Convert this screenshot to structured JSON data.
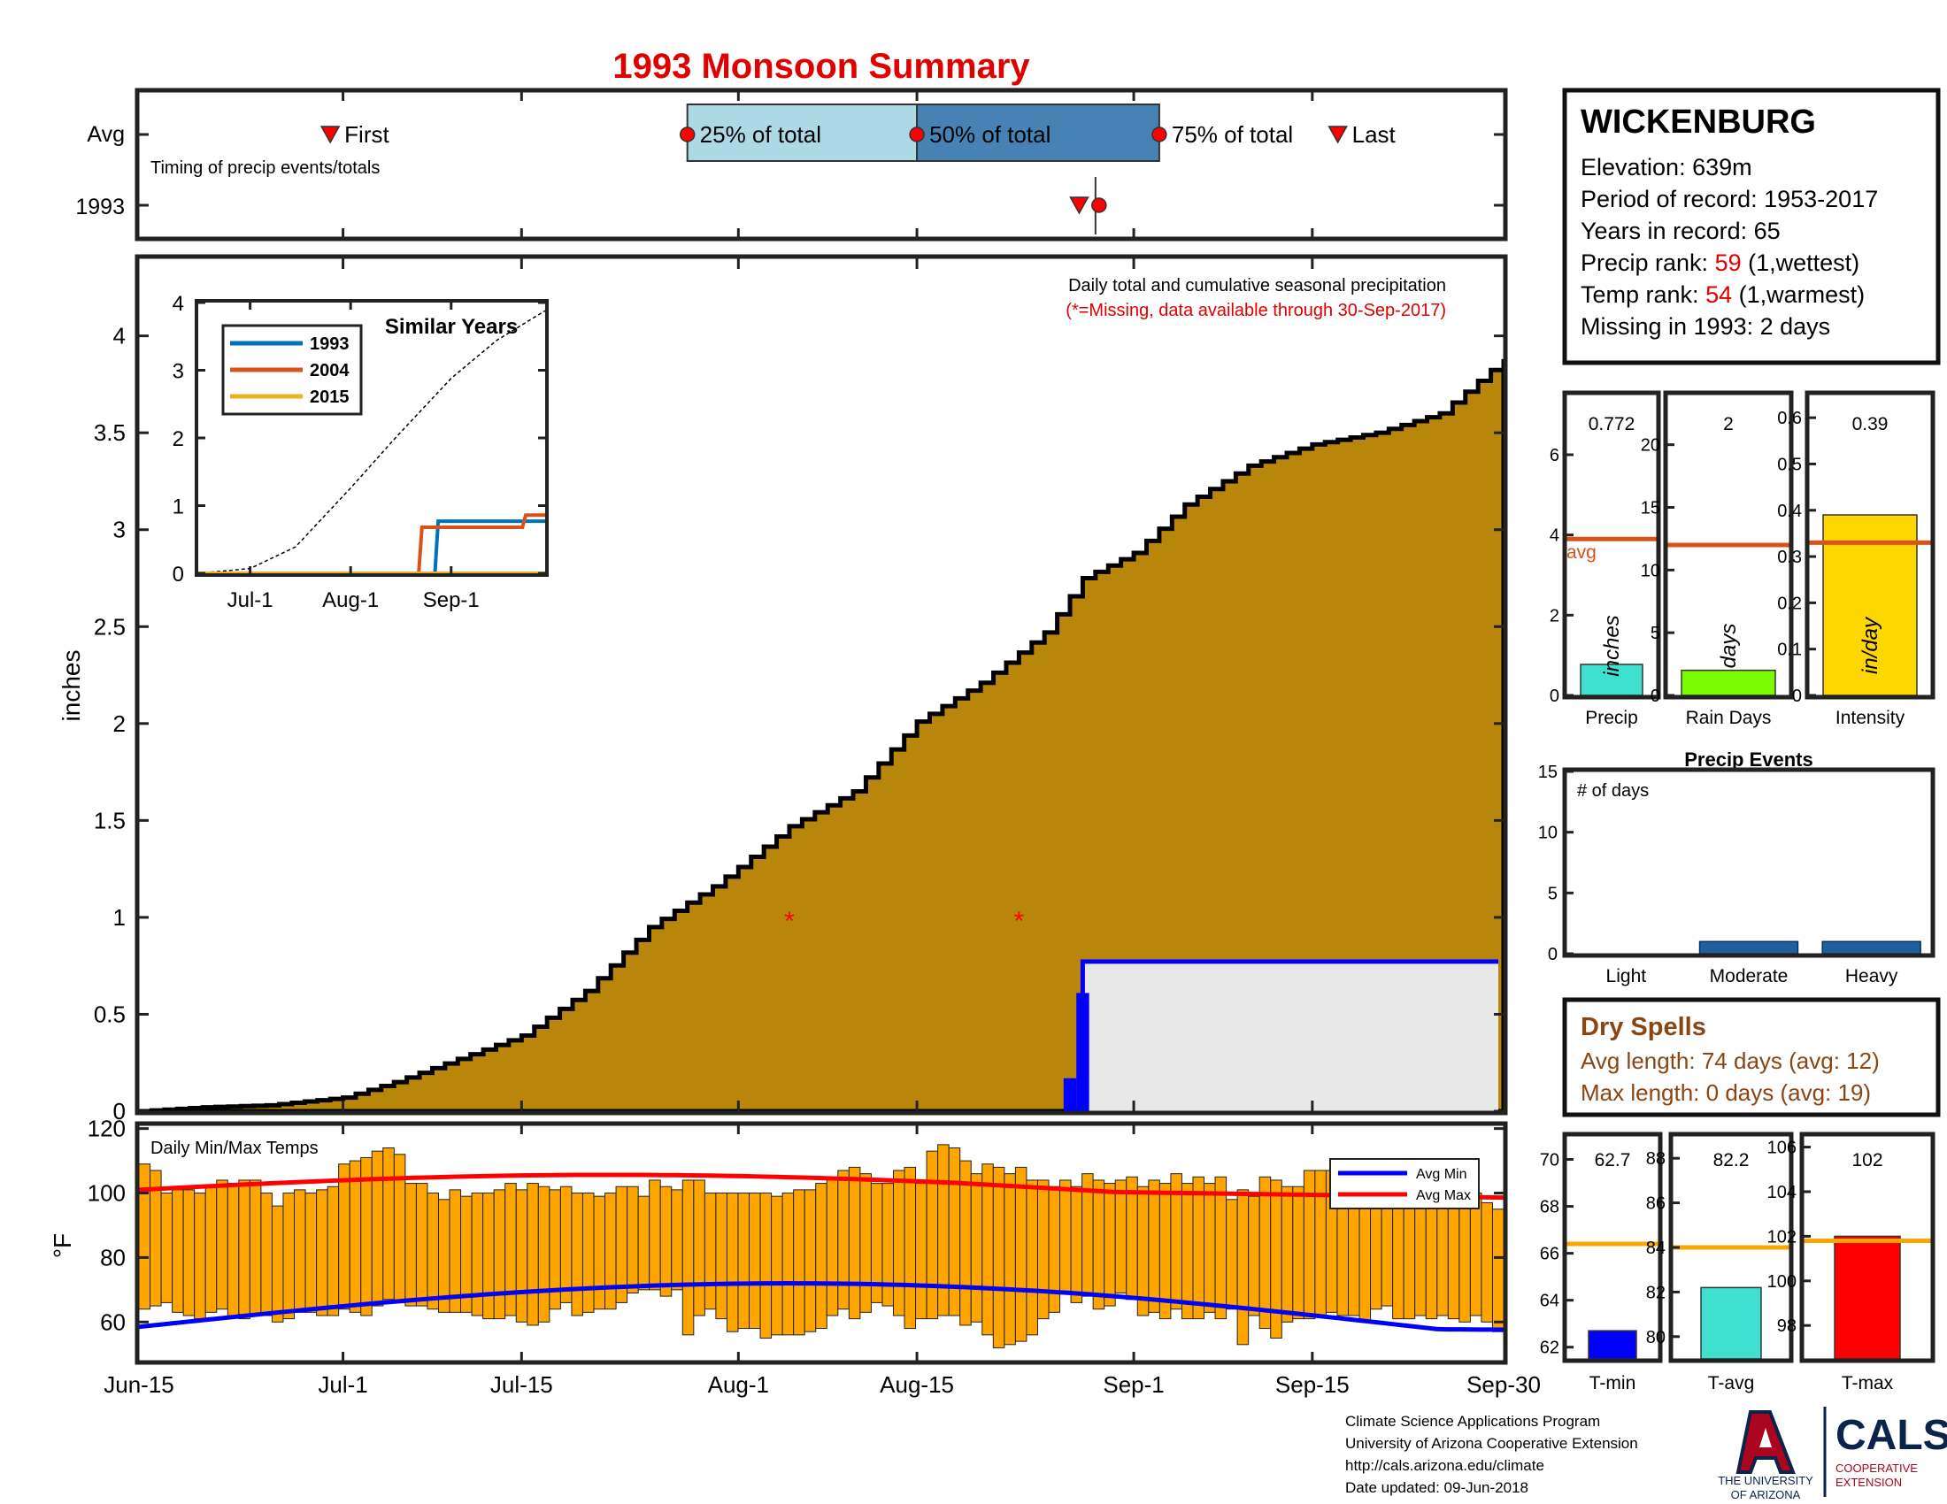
{
  "title": "1993 Monsoon Summary",
  "timing_panel": {
    "row_labels": [
      "Avg",
      "1993"
    ],
    "caption": "Timing of precip events/totals",
    "labels": {
      "first": "First",
      "p25": "25% of total",
      "p50": "50% of total",
      "p75": "75% of total",
      "last": "Last"
    },
    "avg": {
      "first": "2017-06-30",
      "p25": "2017-07-28",
      "p50": "2017-08-15",
      "p75": "2017-09-03",
      "last": "2017-09-17"
    },
    "year": {
      "first": "2017-08-28",
      "p50": "2017-08-29"
    },
    "box_colors": {
      "q1": "#add8e6",
      "q2": "#4682b4"
    },
    "marker_color": "#ff0000"
  },
  "station": {
    "name": "WICKENBURG",
    "elevation": "Elevation: 639m",
    "period": "Period of record: 1953-2017",
    "years": "Years in record: 65",
    "precip_rank_label": "Precip rank: ",
    "precip_rank_value": "59",
    "precip_rank_note": " (1,wettest)",
    "temp_rank_label": "Temp rank: ",
    "temp_rank_value": "54",
    "temp_rank_note": " (1,warmest)",
    "missing": "Missing in 1993: 2 days"
  },
  "main_panel": {
    "ylabel": "inches",
    "annotation": "Daily total and cumulative seasonal precipitation",
    "annotation_missing": "(*=Missing, data available through 30-Sep-2017)",
    "x_ticks": [
      "Jun-15",
      "Jul-1",
      "Jul-15",
      "Aug-1",
      "Aug-15",
      "Sep-1",
      "Sep-15",
      "Sep-30"
    ],
    "y_ticks": [
      "0",
      "0.5",
      "1",
      "1.5",
      "2",
      "2.5",
      "3",
      "3.5",
      "4"
    ],
    "missing_marker": "*",
    "colors": {
      "avg_fill": "#b8860b",
      "year_fill": "#e8e8e8",
      "year_line": "#0000ff",
      "daily_bar": "#0000ff"
    }
  },
  "inset": {
    "title": "Similar Years",
    "x_ticks": [
      "Jul-1",
      "Aug-1",
      "Sep-1"
    ],
    "y_ticks": [
      "0",
      "1",
      "2",
      "3",
      "4"
    ],
    "legend": [
      {
        "name": "1993",
        "color": "#0072bd"
      },
      {
        "name": "2004",
        "color": "#d95319"
      },
      {
        "name": "2015",
        "color": "#edb120"
      }
    ]
  },
  "stat_panels": {
    "precip": {
      "label": "Precip",
      "value": "0.772",
      "unit": "inches",
      "avg_label": "avg",
      "ticks": [
        "0",
        "2",
        "4",
        "6"
      ]
    },
    "rain_days": {
      "label": "Rain Days",
      "value": "2",
      "unit": "days",
      "ticks": [
        "0",
        "5",
        "10",
        "15",
        "20"
      ]
    },
    "intensity": {
      "label": "Intensity",
      "value": "0.39",
      "unit": "in/day",
      "ticks": [
        "0",
        "0.1",
        "0.2",
        "0.3",
        "0.4",
        "0.5",
        "0.6"
      ]
    }
  },
  "precip_events": {
    "title": "Precip Events",
    "ylabel_in": "# of days",
    "categories": [
      "Light",
      "Moderate",
      "Heavy"
    ],
    "y_ticks": [
      "0",
      "5",
      "10",
      "15"
    ]
  },
  "dry_spells": {
    "title": "Dry Spells",
    "avg_length": "Avg length: 74 days (avg: 12)",
    "max_length": "Max length: 0 days (avg: 19)"
  },
  "temp_panel": {
    "caption": "Daily Min/Max Temps",
    "ylabel": "°F",
    "y_ticks": [
      "60",
      "80",
      "100",
      "120"
    ],
    "legend": [
      "Avg Min",
      "Avg Max"
    ],
    "colors": {
      "bar": "#ffa500",
      "avg_min": "#0000ff",
      "avg_max": "#ff0000"
    }
  },
  "temp_stats": {
    "tmin": {
      "label": "T-min",
      "value": "62.7",
      "ticks": [
        "62",
        "64",
        "66",
        "68",
        "70"
      ]
    },
    "tavg": {
      "label": "T-avg",
      "value": "82.2",
      "ticks": [
        "80",
        "82",
        "84",
        "86",
        "88"
      ]
    },
    "tmax": {
      "label": "T-max",
      "value": "102",
      "ticks": [
        "98",
        "100",
        "102",
        "104",
        "106"
      ]
    }
  },
  "footer": {
    "line1": "Climate Science Applications Program",
    "line2": "University of Arizona Cooperative Extension",
    "line3": "http://cals.arizona.edu/climate",
    "line4": " Date updated: 09-Jun-2018",
    "logo_univ1": "THE UNIVERSITY",
    "logo_univ2": "OF ARIZONA",
    "logo_cals": "CALS",
    "logo_coop1": "COOPERATIVE",
    "logo_coop2": "EXTENSION"
  },
  "chart_data": [
    {
      "type": "area",
      "name": "cumulative_precip",
      "xlabel": "",
      "ylabel": "inches",
      "xlim": [
        "2017-06-15",
        "2017-09-30"
      ],
      "ylim": [
        0,
        4.4
      ],
      "series": [
        {
          "name": "avg",
          "x": [
            "2017-06-15",
            "2017-06-20",
            "2017-06-25",
            "2017-07-01",
            "2017-07-05",
            "2017-07-10",
            "2017-07-15",
            "2017-07-20",
            "2017-07-25",
            "2017-07-30",
            "2017-08-01",
            "2017-08-05",
            "2017-08-10",
            "2017-08-15",
            "2017-08-20",
            "2017-08-25",
            "2017-08-28",
            "2017-09-01",
            "2017-09-05",
            "2017-09-10",
            "2017-09-15",
            "2017-09-20",
            "2017-09-25",
            "2017-09-30"
          ],
          "values": [
            0,
            0.02,
            0.03,
            0.07,
            0.15,
            0.27,
            0.39,
            0.62,
            0.95,
            1.16,
            1.26,
            1.47,
            1.65,
            2.01,
            2.21,
            2.47,
            2.75,
            2.88,
            3.13,
            3.33,
            3.44,
            3.5,
            3.6,
            3.88
          ]
        },
        {
          "name": "1993",
          "x": [
            "2017-06-15",
            "2017-08-27",
            "2017-08-28",
            "2017-09-30"
          ],
          "values": [
            0,
            0,
            0.772,
            0.772
          ]
        }
      ],
      "daily_bars": [
        {
          "x": "2017-08-27",
          "value": 0.17
        },
        {
          "x": "2017-08-28",
          "value": 0.61
        }
      ],
      "missing_days": [
        {
          "x": "2017-08-05",
          "y": 1.0
        },
        {
          "x": "2017-08-23",
          "y": 1.0
        }
      ]
    },
    {
      "type": "line",
      "name": "similar_years",
      "title": "Similar Years",
      "xlim": [
        "2017-06-15",
        "2017-09-30"
      ],
      "ylim": [
        0,
        4
      ],
      "series": [
        {
          "name": "avg",
          "x": [
            "2017-06-15",
            "2017-07-01",
            "2017-07-15",
            "2017-08-01",
            "2017-08-15",
            "2017-09-01",
            "2017-09-15",
            "2017-09-30"
          ],
          "values": [
            0,
            0.07,
            0.39,
            1.26,
            2.01,
            2.88,
            3.44,
            3.88
          ]
        },
        {
          "name": "1993",
          "x": [
            "2017-06-15",
            "2017-08-27",
            "2017-08-28",
            "2017-09-30"
          ],
          "values": [
            0,
            0,
            0.77,
            0.77
          ]
        },
        {
          "name": "2004",
          "x": [
            "2017-06-15",
            "2017-08-22",
            "2017-08-23",
            "2017-09-23",
            "2017-09-24",
            "2017-09-30"
          ],
          "values": [
            0,
            0,
            0.68,
            0.68,
            0.86,
            0.86
          ]
        },
        {
          "name": "2015",
          "x": [
            "2017-06-15",
            "2017-09-30"
          ],
          "values": [
            0,
            0
          ]
        }
      ]
    },
    {
      "type": "bar",
      "name": "season_stats",
      "categories": [
        "Precip",
        "Rain Days",
        "Intensity"
      ],
      "values": [
        0.772,
        2,
        0.39
      ],
      "averages": [
        3.9,
        12,
        0.33
      ],
      "ylims": [
        [
          0,
          7.5
        ],
        [
          0,
          24
        ],
        [
          0,
          0.65
        ]
      ],
      "colors": [
        "#40e0d0",
        "#7cfc00",
        "#ffd700"
      ]
    },
    {
      "type": "bar",
      "name": "precip_events",
      "categories": [
        "Light",
        "Moderate",
        "Heavy"
      ],
      "values": [
        0,
        1,
        1
      ],
      "ylim": [
        0,
        15
      ]
    },
    {
      "type": "bar",
      "name": "daily_temps",
      "ylabel": "°F",
      "ylim": [
        48,
        121
      ],
      "xlim": [
        "2017-06-15",
        "2017-09-30"
      ],
      "lows": [
        64,
        65,
        66,
        63,
        62,
        61,
        63,
        64,
        62,
        61,
        62,
        62,
        60,
        61,
        63,
        63,
        62,
        62,
        64,
        63,
        62,
        65,
        67,
        66,
        65,
        65,
        64,
        63,
        63,
        63,
        62,
        61,
        61,
        62,
        60,
        59,
        60,
        64,
        66,
        62,
        63,
        64,
        64,
        66,
        69,
        70,
        70,
        68,
        70,
        56,
        62,
        64,
        61,
        57,
        58,
        58,
        55,
        56,
        56,
        56,
        57,
        58,
        62,
        64,
        61,
        63,
        66,
        65,
        62,
        58,
        61,
        61,
        62,
        62,
        59,
        60,
        56,
        52,
        53,
        54,
        56,
        61,
        63,
        69,
        66,
        68,
        64,
        65,
        69,
        67,
        62,
        63,
        61,
        64,
        61,
        61,
        63,
        61,
        64,
        53,
        62,
        58,
        55,
        60,
        61,
        61,
        62,
        63,
        62,
        62,
        60,
        64,
        65,
        61,
        61,
        62,
        61,
        62,
        61,
        60,
        62,
        60,
        57
      ],
      "highs": [
        109,
        107,
        100,
        101,
        101,
        100,
        102,
        104,
        103,
        104,
        104,
        100,
        96,
        100,
        101,
        100,
        101,
        102,
        109,
        110,
        111,
        113,
        114,
        112,
        103,
        103,
        100,
        98,
        101,
        99,
        100,
        100,
        101,
        103,
        101,
        103,
        102,
        101,
        102,
        100,
        100,
        99,
        100,
        102,
        102,
        99,
        104,
        102,
        101,
        104,
        104,
        100,
        100,
        100,
        100,
        100,
        100,
        99,
        100,
        101,
        101,
        103,
        104,
        107,
        108,
        106,
        103,
        103,
        107,
        108,
        103,
        113,
        115,
        114,
        110,
        106,
        109,
        108,
        106,
        108,
        104,
        104,
        102,
        104,
        102,
        106,
        104,
        103,
        104,
        105,
        102,
        104,
        103,
        106,
        103,
        105,
        103,
        105,
        98,
        101,
        99,
        105,
        104,
        102,
        102,
        107,
        107,
        107,
        104,
        101,
        101,
        104,
        104,
        102,
        103,
        99,
        101,
        104,
        99,
        99,
        100,
        97,
        95
      ]
    },
    {
      "type": "bar",
      "name": "temp_stats",
      "categories": [
        "T-min",
        "T-avg",
        "T-max"
      ],
      "values": [
        62.7,
        82.2,
        102
      ],
      "averages": [
        66.4,
        84.0,
        101.8
      ],
      "ylims": [
        [
          61.5,
          71
        ],
        [
          79,
          89
        ],
        [
          96.5,
          106.5
        ]
      ],
      "colors": [
        "#0000ff",
        "#40e0d0",
        "#ff0000"
      ]
    }
  ]
}
